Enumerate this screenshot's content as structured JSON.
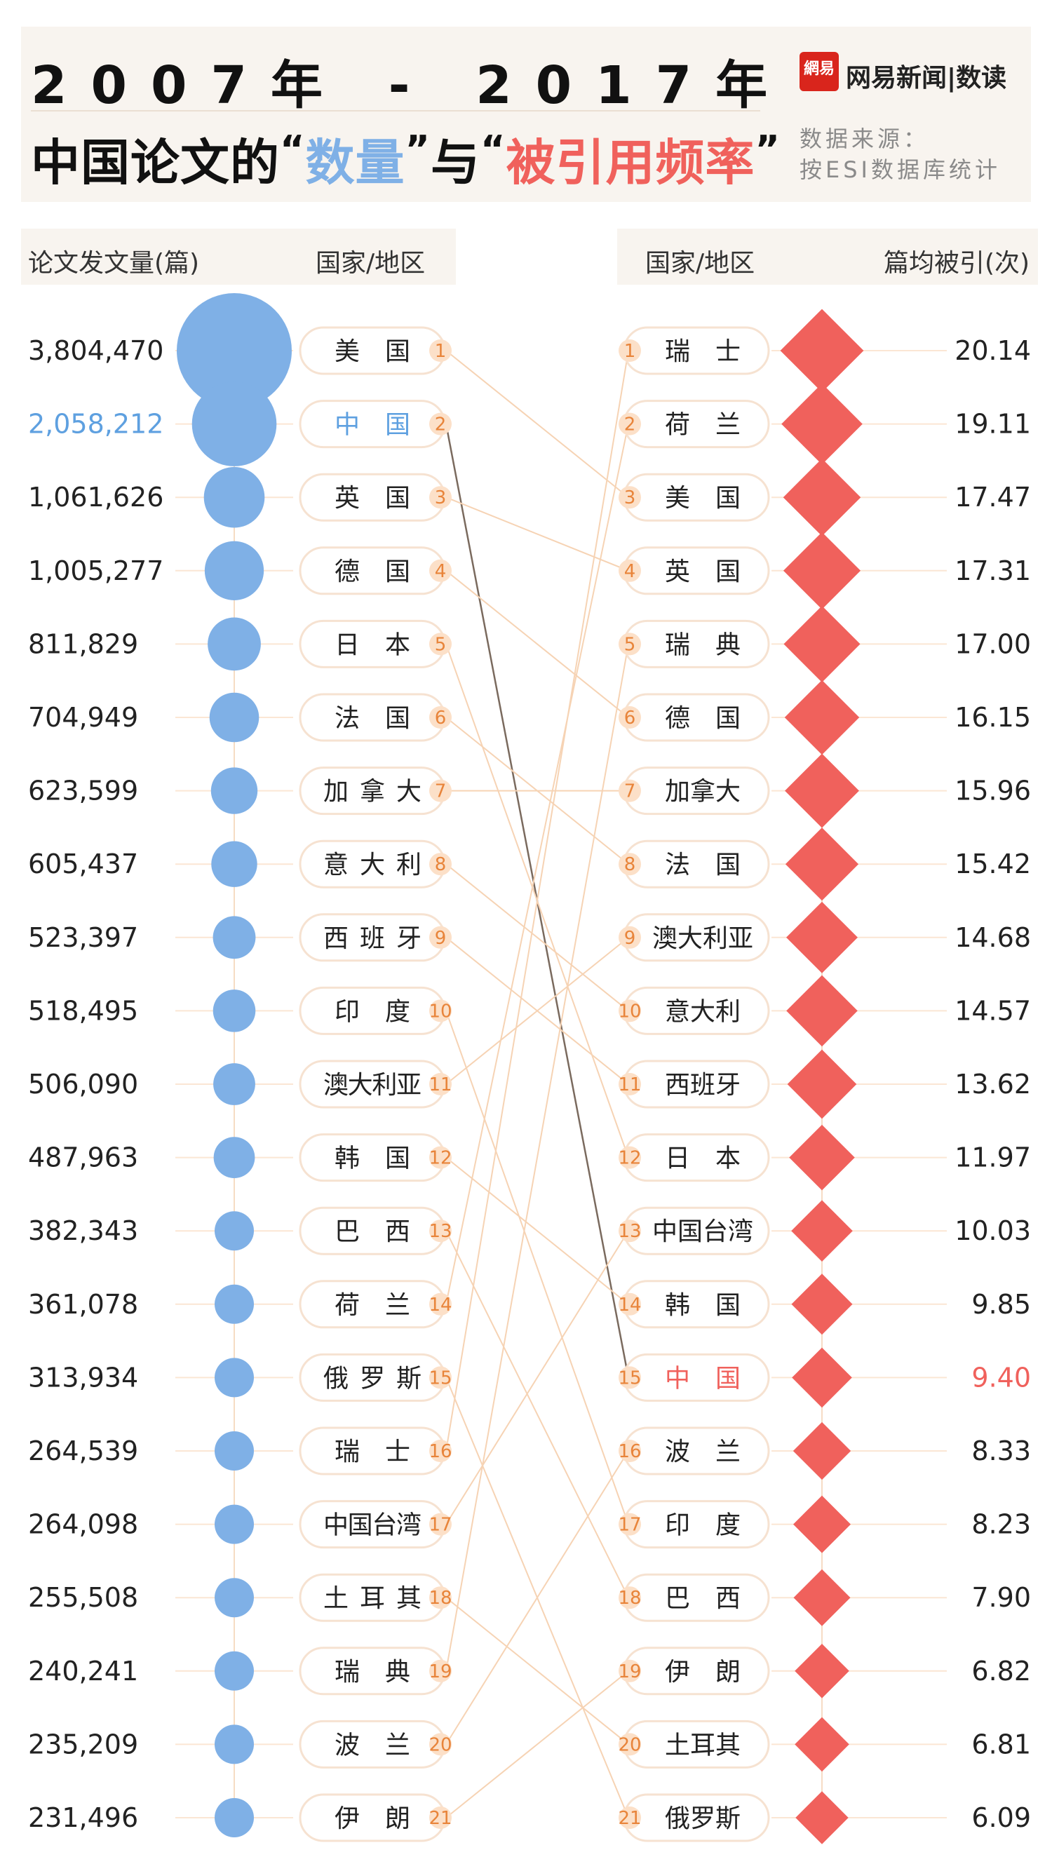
{
  "header": {
    "title_line1": "2007年 - 2017年",
    "title_prefix": "中国论文的",
    "open_quote": "“",
    "close_quote": "”",
    "highlight_count": "数量",
    "connector": "与",
    "highlight_citation": "被引用频率",
    "brand_logo_text": "網易",
    "brand_name": "网易新闻|数读",
    "source_line1": "数据来源：",
    "source_line2": "按ESI数据库统计"
  },
  "column_headers": {
    "left_value": "论文发文量(篇)",
    "left_country": "国家/地区",
    "right_country": "国家/地区",
    "right_value": "篇均被引(次)"
  },
  "colors": {
    "bubble": "#7fb0e6",
    "diamond": "#f0615c",
    "highlight_blue": "#5ea0e0",
    "highlight_red": "#f0615c",
    "link_line": "#f6d3b4",
    "china_link": "#7a6a5e",
    "pill_border": "#f6e2d1",
    "rank_badge": "#fce0c8",
    "rank_text": "#e8843a"
  },
  "chart_data": [
    {
      "type": "bubble",
      "title": "论文发文量(篇)",
      "categories": [
        "美国",
        "中国",
        "英国",
        "德国",
        "日本",
        "法国",
        "加拿大",
        "意大利",
        "西班牙",
        "印度",
        "澳大利亚",
        "韩国",
        "巴西",
        "荷兰",
        "俄罗斯",
        "瑞士",
        "中国台湾",
        "土耳其",
        "瑞典",
        "波兰",
        "伊朗"
      ],
      "values": [
        3804470,
        2058212,
        1061626,
        1005277,
        811829,
        704949,
        623599,
        605437,
        523397,
        518495,
        506090,
        487963,
        382343,
        361078,
        313934,
        264539,
        264098,
        255508,
        240241,
        235209,
        231496
      ],
      "labels": [
        "3,804,470",
        "2,058,212",
        "1,061,626",
        "1,005,277",
        "811,829",
        "704,949",
        "623,599",
        "605,437",
        "523,397",
        "518,495",
        "506,090",
        "487,963",
        "382,343",
        "361,078",
        "313,934",
        "264,539",
        "264,098",
        "255,508",
        "240,241",
        "235,209",
        "231,496"
      ],
      "ranks": [
        "1",
        "2",
        "3",
        "4",
        "5",
        "6",
        "7",
        "8",
        "9",
        "10",
        "11",
        "12",
        "13",
        "14",
        "15",
        "16",
        "17",
        "18",
        "19",
        "20",
        "21"
      ]
    },
    {
      "type": "diamond",
      "title": "篇均被引(次)",
      "categories": [
        "瑞士",
        "荷兰",
        "美国",
        "英国",
        "瑞典",
        "德国",
        "加拿大",
        "法国",
        "澳大利亚",
        "意大利",
        "西班牙",
        "日本",
        "中国台湾",
        "韩国",
        "中国",
        "波兰",
        "印度",
        "巴西",
        "伊朗",
        "土耳其",
        "俄罗斯"
      ],
      "values": [
        20.14,
        19.11,
        17.47,
        17.31,
        17.0,
        16.15,
        15.96,
        15.42,
        14.68,
        14.57,
        13.62,
        11.97,
        10.03,
        9.85,
        9.4,
        8.33,
        8.23,
        7.9,
        6.82,
        6.81,
        6.09
      ],
      "labels": [
        "20.14",
        "19.11",
        "17.47",
        "17.31",
        "17.00",
        "16.15",
        "15.96",
        "15.42",
        "14.68",
        "14.57",
        "13.62",
        "11.97",
        "10.03",
        "9.85",
        "9.40",
        "8.33",
        "8.23",
        "7.90",
        "6.82",
        "6.81",
        "6.09"
      ],
      "ranks": [
        "1",
        "2",
        "3",
        "4",
        "5",
        "6",
        "7",
        "8",
        "9",
        "10",
        "11",
        "12",
        "13",
        "14",
        "15",
        "16",
        "17",
        "18",
        "19",
        "20",
        "21"
      ]
    }
  ],
  "highlight_country": "中国"
}
